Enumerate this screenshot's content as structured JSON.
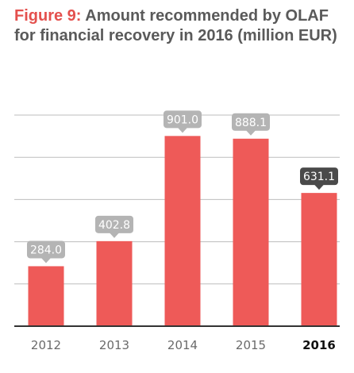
{
  "figure_label": "Figure 9:",
  "title": "Amount recommended by OLAF for financial recovery in 2016 (million EUR)",
  "colors": {
    "bar": "#ee5a58",
    "label_box": "#b4b4b4",
    "label_box_highlight": "#4a4a4a",
    "grid": "#bdbdbd",
    "axis": "#333333",
    "figure_label": "#e4504d",
    "title": "#5a5a5a"
  },
  "chart_data": {
    "type": "bar",
    "categories": [
      "2012",
      "2013",
      "2014",
      "2015",
      "2016"
    ],
    "values": [
      284.0,
      402.8,
      901.0,
      888.1,
      631.1
    ],
    "data_labels": [
      "284.0",
      "402.8",
      "901.0",
      "888.1",
      "631.1"
    ],
    "highlight_category": "2016",
    "ylim": [
      0,
      1000
    ],
    "grid": true,
    "xlabel": "",
    "ylabel": ""
  }
}
